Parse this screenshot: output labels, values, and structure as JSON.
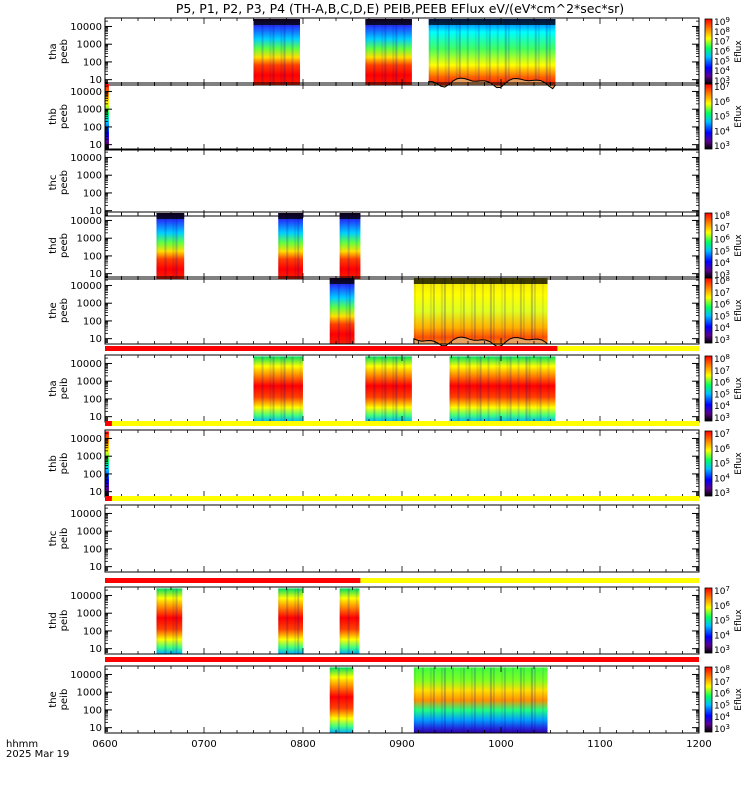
{
  "title": "P5, P1, P2, P3, P4 (TH-A,B,C,D,E) PEIB,PEEB EFlux eV/(eV*cm^2*sec*sr)",
  "time_axis": {
    "start_label": "hhmm",
    "date_label": "2025 Mar 19",
    "tick_labels": [
      "0600",
      "0700",
      "0800",
      "0900",
      "1000",
      "1100",
      "1200"
    ],
    "range_hours": [
      6,
      12
    ]
  },
  "colors": {
    "flag_red": "#ff0000",
    "flag_yellow": "#ffff00",
    "background": "#ffffff",
    "sc_potential_fill": "#e8a060"
  },
  "colorbar_unit": "Eflux",
  "chart_data": [
    {
      "type": "heatmap",
      "name": "tha-peeb",
      "ylabel": [
        "tha",
        "peeb"
      ],
      "yticks": [
        "10",
        "100",
        "1000",
        "10000"
      ],
      "ylim_eV": [
        5,
        30000
      ],
      "colorbar": {
        "show": true,
        "labels": [
          "10^3",
          "10^4",
          "10^5",
          "10^6",
          "10^7",
          "10^8",
          "10^9"
        ]
      },
      "intervals_hour": [
        [
          7.5,
          7.97,
          "bin"
        ],
        [
          8.63,
          9.1,
          "bin"
        ],
        [
          9.27,
          10.55,
          "mixed"
        ]
      ],
      "potential_curve": true
    },
    {
      "type": "heatmap",
      "name": "thb-peeb",
      "ylabel": [
        "thb",
        "peeb"
      ],
      "yticks": [
        "10",
        "100",
        "1000",
        "10000"
      ],
      "ylim_eV": [
        5,
        30000
      ],
      "colorbar": {
        "show": true,
        "labels": [
          "10^3",
          "10^4",
          "10^5",
          "10^6",
          "10^7"
        ]
      },
      "intervals_hour": [
        [
          6.0,
          6.04,
          "thin"
        ]
      ],
      "potential_curve": false
    },
    {
      "type": "heatmap",
      "name": "thc-peeb",
      "ylabel": [
        "thc",
        "peeb"
      ],
      "yticks": [
        "10",
        "100",
        "1000",
        "10000"
      ],
      "ylim_eV": [
        5,
        30000
      ],
      "colorbar": {
        "show": false,
        "labels": []
      },
      "intervals_hour": [],
      "potential_curve": false
    },
    {
      "type": "heatmap",
      "name": "thd-peeb",
      "ylabel": [
        "thd",
        "peeb"
      ],
      "yticks": [
        "10",
        "100",
        "1000",
        "10000"
      ],
      "ylim_eV": [
        5,
        30000
      ],
      "colorbar": {
        "show": true,
        "labels": [
          "10^3",
          "10^4",
          "10^5",
          "10^6",
          "10^7",
          "10^8"
        ]
      },
      "intervals_hour": [
        [
          6.52,
          6.8,
          "bin"
        ],
        [
          7.75,
          8.0,
          "bin"
        ],
        [
          8.37,
          8.58,
          "bin"
        ]
      ],
      "potential_curve": false
    },
    {
      "type": "heatmap",
      "name": "the-peeb",
      "ylabel": [
        "the",
        "peeb"
      ],
      "yticks": [
        "10",
        "100",
        "1000",
        "10000"
      ],
      "ylim_eV": [
        5,
        30000
      ],
      "colorbar": {
        "show": true,
        "labels": [
          "10^3",
          "10^4",
          "10^5",
          "10^6",
          "10^7",
          "10^8"
        ]
      },
      "intervals_hour": [
        [
          8.27,
          8.52,
          "bin"
        ],
        [
          9.12,
          10.47,
          "yellow"
        ]
      ],
      "potential_curve": true
    },
    {
      "type": "heatmap",
      "name": "tha-peib",
      "ylabel": [
        "tha",
        "peib"
      ],
      "yticks": [
        "10",
        "100",
        "1000",
        "10000"
      ],
      "ylim_eV": [
        5,
        30000
      ],
      "colorbar": {
        "show": true,
        "labels": [
          "10^3",
          "10^4",
          "10^5",
          "10^6",
          "10^7",
          "10^8"
        ]
      },
      "intervals_hour": [
        [
          7.5,
          8.0,
          "ion"
        ],
        [
          8.63,
          9.1,
          "ion"
        ],
        [
          9.48,
          10.55,
          "ion"
        ]
      ],
      "flag_bar_above": [
        [
          6.0,
          10.57,
          "red"
        ],
        [
          10.57,
          12.0,
          "yellow"
        ]
      ],
      "potential_curve": false
    },
    {
      "type": "heatmap",
      "name": "thb-peib",
      "ylabel": [
        "thb",
        "peib"
      ],
      "yticks": [
        "10",
        "100",
        "1000",
        "10000"
      ],
      "ylim_eV": [
        5,
        30000
      ],
      "colorbar": {
        "show": true,
        "labels": [
          "10^3",
          "10^4",
          "10^5",
          "10^6",
          "10^7"
        ]
      },
      "intervals_hour": [
        [
          6.0,
          6.04,
          "thin"
        ]
      ],
      "flag_bar_above": [
        [
          6.0,
          6.07,
          "red"
        ],
        [
          6.07,
          12.0,
          "yellow"
        ]
      ],
      "potential_curve": false
    },
    {
      "type": "heatmap",
      "name": "thc-peib",
      "ylabel": [
        "thc",
        "peib"
      ],
      "yticks": [
        "10",
        "100",
        "1000",
        "10000"
      ],
      "ylim_eV": [
        5,
        30000
      ],
      "colorbar": {
        "show": false,
        "labels": []
      },
      "intervals_hour": [],
      "flag_bar_above": [
        [
          6.0,
          6.07,
          "red"
        ],
        [
          6.07,
          12.0,
          "yellow"
        ]
      ],
      "potential_curve": false
    },
    {
      "type": "heatmap",
      "name": "thd-peib",
      "ylabel": [
        "thd",
        "peib"
      ],
      "yticks": [
        "10",
        "100",
        "1000",
        "10000"
      ],
      "ylim_eV": [
        5,
        30000
      ],
      "colorbar": {
        "show": true,
        "labels": [
          "10^3",
          "10^4",
          "10^5",
          "10^6",
          "10^7"
        ]
      },
      "intervals_hour": [
        [
          6.52,
          6.78,
          "ion"
        ],
        [
          7.75,
          8.0,
          "ion"
        ],
        [
          8.37,
          8.57,
          "ion"
        ]
      ],
      "flag_bar_above": [
        [
          6.0,
          8.58,
          "red"
        ],
        [
          8.58,
          12.0,
          "yellow"
        ]
      ],
      "potential_curve": false
    },
    {
      "type": "heatmap",
      "name": "the-peib",
      "ylabel": [
        "the",
        "peib"
      ],
      "yticks": [
        "10",
        "100",
        "1000",
        "10000"
      ],
      "ylim_eV": [
        5,
        30000
      ],
      "colorbar": {
        "show": true,
        "labels": [
          "10^3",
          "10^4",
          "10^5",
          "10^6",
          "10^7",
          "10^8"
        ]
      },
      "intervals_hour": [
        [
          8.27,
          8.51,
          "ion"
        ],
        [
          9.12,
          10.47,
          "ionwide"
        ]
      ],
      "flag_bar_above": [
        [
          6.0,
          12.0,
          "red"
        ]
      ],
      "potential_curve": false
    }
  ]
}
